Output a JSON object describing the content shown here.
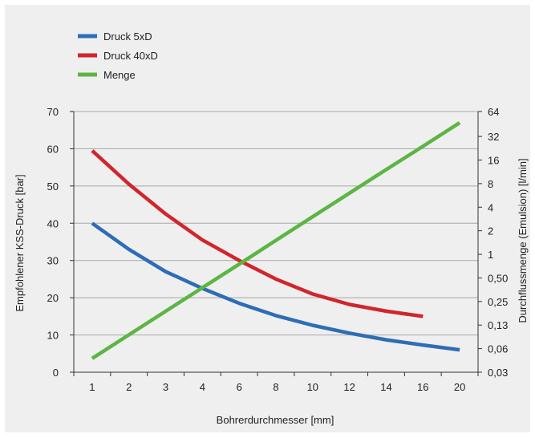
{
  "chart_data": {
    "type": "line",
    "title": "",
    "xlabel": "Bohrerdurchmesser [mm]",
    "ylabel": "Empfohlener KSS-Druck [bar]",
    "y2label": "Durchflussmenge (Emulsion) [l/min]",
    "categories": [
      "1",
      "2",
      "3",
      "4",
      "6",
      "8",
      "10",
      "12",
      "14",
      "16",
      "20"
    ],
    "ylim": [
      0,
      70
    ],
    "yticks": [
      "0",
      "10",
      "20",
      "30",
      "40",
      "50",
      "60",
      "70"
    ],
    "y2scale": "log2",
    "y2ticks": [
      "0,03",
      "0,06",
      "0,13",
      "0,25",
      "0,50",
      "1",
      "2",
      "4",
      "8",
      "16",
      "32",
      "64"
    ],
    "grid": "horizontal",
    "legend_position": "top-left",
    "series": [
      {
        "name": "Druck 5xD",
        "axis": "left",
        "color": "#2e6db4",
        "values": [
          40,
          33,
          27,
          22.5,
          18.5,
          15.2,
          12.6,
          10.5,
          8.7,
          7.3,
          6
        ]
      },
      {
        "name": "Druck 40xD",
        "axis": "left",
        "color": "#d0262c",
        "values": [
          59.5,
          50.5,
          42.5,
          35.5,
          30,
          25,
          21,
          18.2,
          16.4,
          15,
          null
        ]
      },
      {
        "name": "Menge",
        "axis": "right",
        "color": "#5cb544",
        "values": [
          0.045,
          0.09,
          0.18,
          0.36,
          0.72,
          1.45,
          2.9,
          5.8,
          11.6,
          23,
          46
        ]
      }
    ]
  }
}
